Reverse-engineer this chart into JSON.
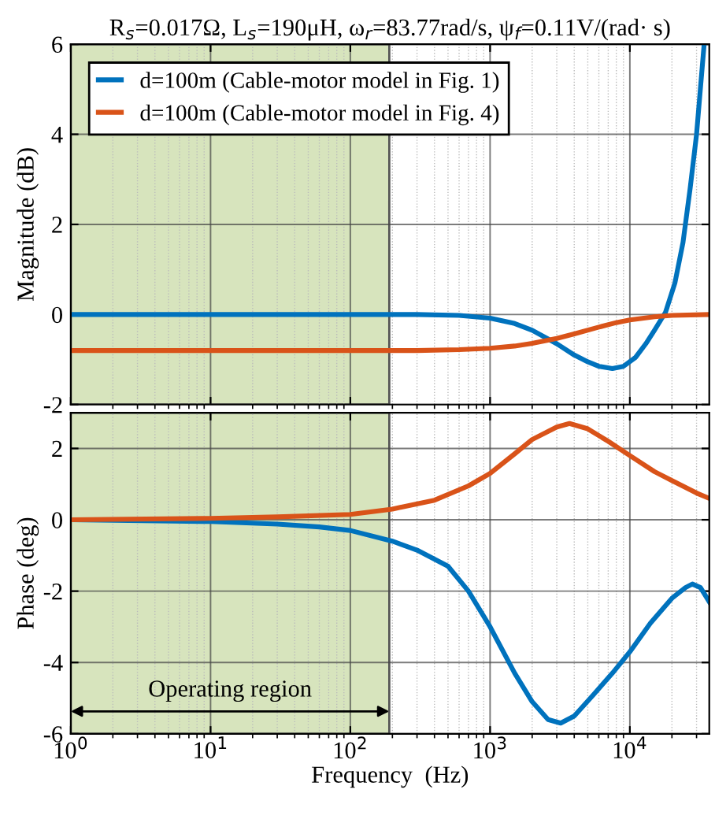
{
  "chart_data": [
    {
      "type": "line",
      "title": "R$_{s}$=0.017Ω, L$_{s}$=190μH, ω$_{r}$=83.77rad/s, ψ$_{f}$=0.11V/(rad· s)",
      "ylabel": "Magnitude (dB)",
      "log": "x",
      "grid": true,
      "legend": "top left",
      "tick_labels": "y",
      "line_style": "solid",
      "xlim": [
        1,
        37000
      ],
      "xticks": [
        {
          "value": 1,
          "label": null
        },
        {
          "value": 10,
          "label": null
        },
        {
          "value": 100,
          "label": null
        },
        {
          "value": 1000,
          "label": null
        },
        {
          "value": 10000,
          "label": null
        }
      ],
      "ylim": [
        -2,
        6
      ],
      "yticks": [
        -2,
        0,
        2,
        4,
        6
      ],
      "bands": [
        {
          "axis": "x",
          "from": 1,
          "to": 190,
          "color": "#d7e4bd"
        }
      ],
      "series": [
        {
          "name": "d=100m (Cable-motor model in Fig. 1)",
          "color": "#0072bd",
          "x": [
            1,
            10,
            100,
            300,
            600,
            1000,
            1500,
            2000,
            3000,
            4000,
            5000,
            6000,
            7500,
            9000,
            11000,
            13000,
            15000,
            18000,
            21000,
            24000,
            27000,
            30000,
            34000
          ],
          "values": [
            0,
            0,
            0,
            0,
            -0.02,
            -0.08,
            -0.2,
            -0.35,
            -0.65,
            -0.9,
            -1.05,
            -1.15,
            -1.2,
            -1.15,
            -0.95,
            -0.65,
            -0.35,
            0.05,
            0.7,
            1.6,
            2.8,
            4.0,
            6.0
          ]
        },
        {
          "name": "d=100m (Cable-motor model in Fig. 4)",
          "color": "#d95319",
          "x": [
            1,
            10,
            100,
            300,
            600,
            1000,
            1500,
            2000,
            3000,
            4000,
            6000,
            8000,
            10000,
            15000,
            20000,
            37000
          ],
          "values": [
            -0.8,
            -0.8,
            -0.8,
            -0.8,
            -0.78,
            -0.75,
            -0.7,
            -0.64,
            -0.53,
            -0.43,
            -0.28,
            -0.18,
            -0.12,
            -0.05,
            -0.02,
            0
          ]
        }
      ]
    },
    {
      "type": "line",
      "xlabel": "Frequency  (Hz)",
      "ylabel": "Phase (deg)",
      "log": "x",
      "grid": true,
      "line_style": "solid",
      "xlim": [
        1,
        37000
      ],
      "xticks": [
        {
          "value": 1,
          "label": "10$^{0}$"
        },
        {
          "value": 10,
          "label": "10$^{1}$"
        },
        {
          "value": 100,
          "label": "10$^{2}$"
        },
        {
          "value": 1000,
          "label": "10$^{3}$"
        },
        {
          "value": 10000,
          "label": "10$^{4}$"
        }
      ],
      "ylim": [
        -6,
        3
      ],
      "yticks": [
        -6,
        -4,
        -2,
        0,
        2
      ],
      "bands": [
        {
          "axis": "x",
          "from": 1,
          "to": 190,
          "color": "#d7e4bd",
          "label": "Operating region"
        }
      ],
      "series": [
        {
          "color": "#0072bd",
          "x": [
            1,
            10,
            30,
            60,
            100,
            200,
            300,
            500,
            700,
            1000,
            1500,
            2000,
            2600,
            3200,
            4000,
            5500,
            7500,
            10000,
            14000,
            20000,
            25000,
            28000,
            32000,
            37000
          ],
          "values": [
            0,
            -0.05,
            -0.12,
            -0.2,
            -0.3,
            -0.6,
            -0.85,
            -1.3,
            -2.0,
            -3.0,
            -4.3,
            -5.1,
            -5.6,
            -5.7,
            -5.5,
            -4.9,
            -4.3,
            -3.7,
            -2.9,
            -2.2,
            -1.9,
            -1.8,
            -1.9,
            -2.3
          ]
        },
        {
          "color": "#d95319",
          "x": [
            1,
            10,
            30,
            100,
            200,
            400,
            700,
            1000,
            1500,
            2000,
            3000,
            3700,
            5000,
            7000,
            10000,
            15000,
            20000,
            30000,
            37000
          ],
          "values": [
            0,
            0.04,
            0.08,
            0.15,
            0.3,
            0.55,
            0.95,
            1.3,
            1.85,
            2.25,
            2.6,
            2.7,
            2.55,
            2.2,
            1.8,
            1.35,
            1.1,
            0.75,
            0.6
          ]
        }
      ]
    }
  ]
}
